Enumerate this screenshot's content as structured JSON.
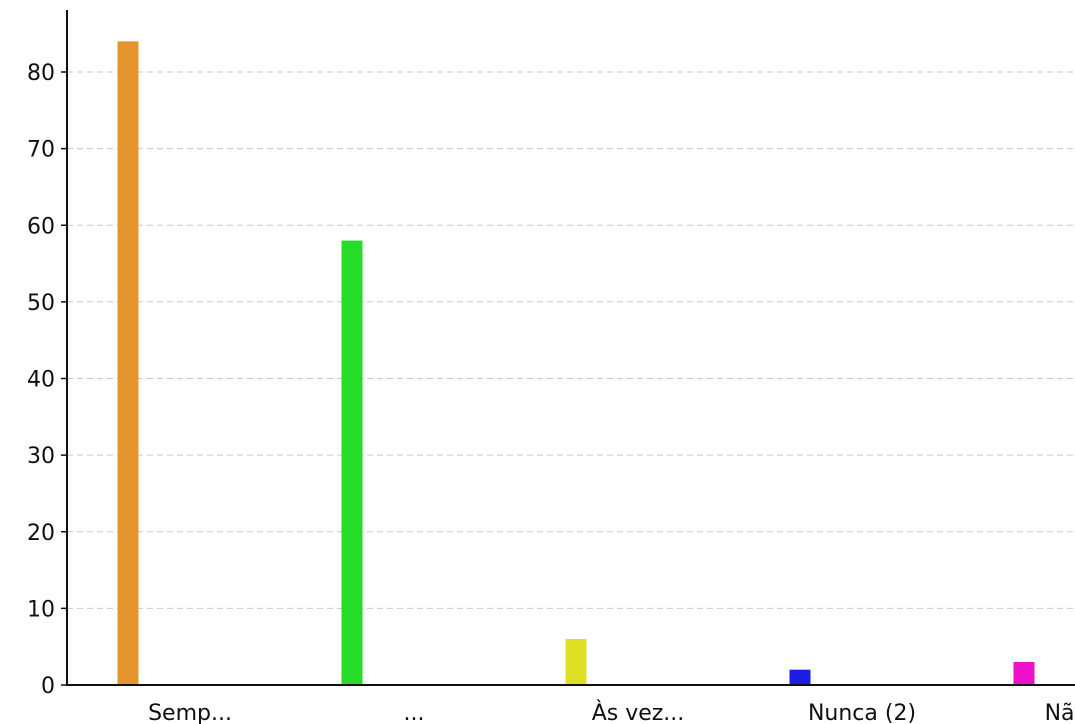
{
  "chart_data": {
    "type": "bar",
    "categories": [
      "Semp...",
      "...",
      "Às vez...",
      "Nunca (2)",
      "Não s..."
    ],
    "values": [
      84,
      58,
      6,
      2,
      3
    ],
    "colors": [
      "#e6952e",
      "#26dc26",
      "#dfe024",
      "#1c1ce6",
      "#ec10c8"
    ],
    "yticks": [
      0,
      10,
      20,
      30,
      40,
      50,
      60,
      70,
      80
    ],
    "ylim": [
      0,
      88
    ],
    "grid": true
  }
}
